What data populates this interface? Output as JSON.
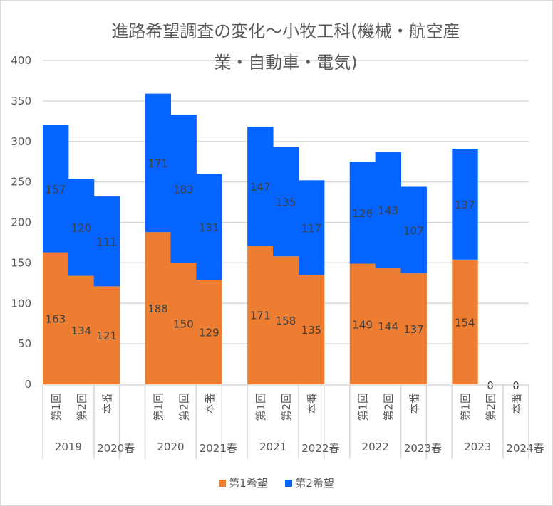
{
  "chart_data": {
    "type": "bar",
    "stacked": true,
    "title_lines": [
      "進路希望調査の変化～小牧工科(機械・航空産",
      "業・自動車・電気)"
    ],
    "xlabel": "",
    "ylabel": "",
    "ylim": [
      0,
      400
    ],
    "yticks": [
      0,
      50,
      100,
      150,
      200,
      250,
      300,
      350,
      400
    ],
    "grid": true,
    "legend_position": "bottom",
    "groups": [
      {
        "year": "2019",
        "spring": "2020春"
      },
      {
        "year": "2020",
        "spring": "2021春"
      },
      {
        "year": "2021",
        "spring": "2022春"
      },
      {
        "year": "2022",
        "spring": "2023春"
      },
      {
        "year": "2023",
        "spring": "2024春"
      }
    ],
    "categories": [
      "第1回",
      "第2回",
      "本番"
    ],
    "series": [
      {
        "name": "第1希望",
        "color": "#ED7D31",
        "values": [
          [
            163,
            134,
            121
          ],
          [
            188,
            150,
            129
          ],
          [
            171,
            158,
            135
          ],
          [
            149,
            144,
            137
          ],
          [
            154,
            0,
            0
          ]
        ]
      },
      {
        "name": "第2希望",
        "color": "#0563FF",
        "values": [
          [
            157,
            120,
            111
          ],
          [
            171,
            183,
            131
          ],
          [
            147,
            135,
            117
          ],
          [
            126,
            143,
            107
          ],
          [
            137,
            null,
            null
          ]
        ]
      }
    ],
    "zero_labels": [
      "0",
      "0"
    ]
  },
  "colors": {
    "grid": "#D9D9D9",
    "text": "#595959",
    "label": "#404040"
  }
}
